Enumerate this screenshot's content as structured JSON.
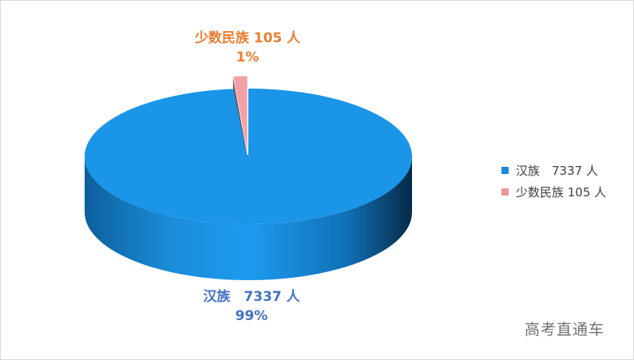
{
  "chart_data": {
    "type": "pie",
    "style": "3d-exploded",
    "slices": [
      {
        "name": "汉族",
        "value": 7337,
        "unit": "人",
        "percent": "99%",
        "color": "#1a95e8",
        "label": "汉族　7337 人",
        "legend": "汉族　7337 人",
        "label_color": "#4472c4"
      },
      {
        "name": "少数民族",
        "value": 105,
        "unit": "人",
        "percent": "1%",
        "color": "#f4a0a8",
        "label": "少数民族 105 人",
        "legend": "少数民族 105 人",
        "label_color": "#ed7d31"
      }
    ],
    "legend_position": "right"
  },
  "watermark": "高考直通车"
}
